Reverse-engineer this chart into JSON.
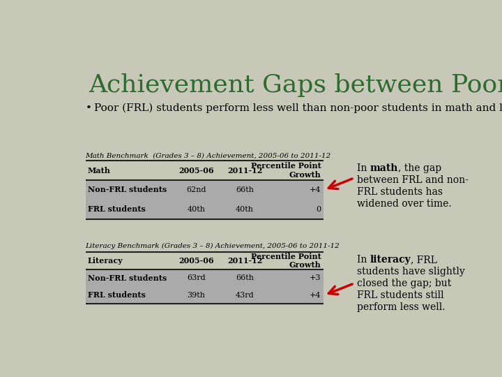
{
  "title": "Achievement Gaps between Poor and Non-Poor",
  "title_color": "#2E6B2E",
  "bg_color": "#C8C8B8",
  "bullet": "Poor (FRL) students perform less well than non-poor students in math and literacy.",
  "math_table_title": "Math Benchmark  (Grades 3 – 8) Achievement, 2005-06 to 2011-12",
  "math_headers": [
    "Math",
    "2005-06",
    "2011-12",
    "Percentile Point\nGrowth"
  ],
  "math_rows": [
    [
      "Non-FRL students",
      "62nd",
      "66th",
      "+4"
    ],
    [
      "FRL students",
      "40th",
      "40th",
      "0"
    ]
  ],
  "literacy_table_title": "Literacy Benchmark (Grades 3 – 8) Achievement, 2005-06 to 2011-12",
  "literacy_headers": [
    "Literacy",
    "2005-06",
    "2011-12",
    "Percentile Point\nGrowth"
  ],
  "literacy_rows": [
    [
      "Non-FRL students",
      "63rd",
      "66th",
      "+3"
    ],
    [
      "FRL students",
      "39th",
      "43rd",
      "+4"
    ]
  ],
  "arrow_color": "#CC0000",
  "table_bg": "#B8B8A8",
  "row_bg": "#ABABAB",
  "header_bg": "#C8C8B8",
  "line_color": "#222222"
}
